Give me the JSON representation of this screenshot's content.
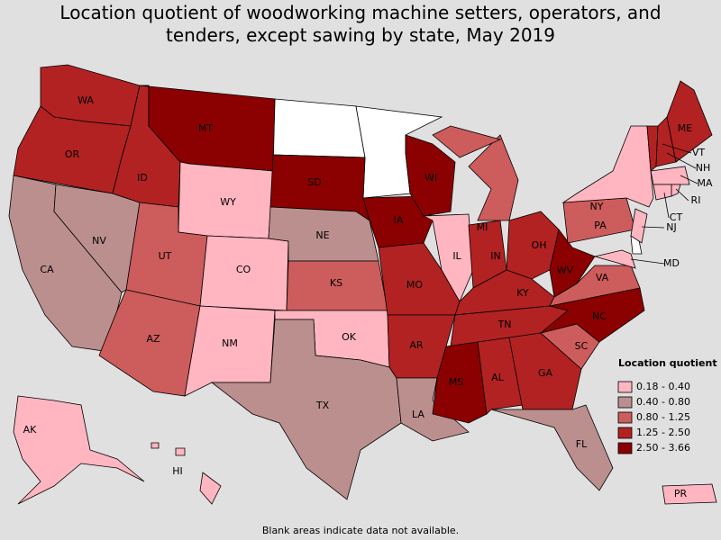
{
  "title": "Location quotient of woodworking machine setters, operators, and tenders, except sawing by state, May 2019",
  "note": "Blank areas indicate data not available.",
  "legend": {
    "title": "Location quotient",
    "bins": [
      {
        "label": "0.18 - 0.40",
        "color": "#ffb6c1"
      },
      {
        "label": "0.40 - 0.80",
        "color": "#bc8f8f"
      },
      {
        "label": "0.80 - 1.25",
        "color": "#cd5c5c"
      },
      {
        "label": "1.25 - 2.50",
        "color": "#b22222"
      },
      {
        "label": "2.50 - 3.66",
        "color": "#8b0000"
      }
    ]
  },
  "states": [
    {
      "label": "WA",
      "color": "#b22222"
    },
    {
      "label": "OR",
      "color": "#b22222"
    },
    {
      "label": "CA",
      "color": "#bc8f8f"
    },
    {
      "label": "NV",
      "color": "#bc8f8f"
    },
    {
      "label": "ID",
      "color": "#b22222"
    },
    {
      "label": "MT",
      "color": "#8b0000"
    },
    {
      "label": "WY",
      "color": "#ffb6c1"
    },
    {
      "label": "UT",
      "color": "#cd5c5c"
    },
    {
      "label": "CO",
      "color": "#ffb6c1"
    },
    {
      "label": "AZ",
      "color": "#cd5c5c"
    },
    {
      "label": "NM",
      "color": "#ffb6c1"
    },
    {
      "label": "SD",
      "color": "#8b0000"
    },
    {
      "label": "NE",
      "color": "#bc8f8f"
    },
    {
      "label": "KS",
      "color": "#cd5c5c"
    },
    {
      "label": "OK",
      "color": "#ffb6c1"
    },
    {
      "label": "TX",
      "color": "#bc8f8f"
    },
    {
      "label": "IA",
      "color": "#8b0000"
    },
    {
      "label": "MO",
      "color": "#b22222"
    },
    {
      "label": "AR",
      "color": "#b22222"
    },
    {
      "label": "LA",
      "color": "#bc8f8f"
    },
    {
      "label": "WI",
      "color": "#8b0000"
    },
    {
      "label": "IL",
      "color": "#ffb6c1"
    },
    {
      "label": "MI",
      "color": "#cd5c5c"
    },
    {
      "label": "IN",
      "color": "#b22222"
    },
    {
      "label": "OH",
      "color": "#b22222"
    },
    {
      "label": "KY",
      "color": "#b22222"
    },
    {
      "label": "TN",
      "color": "#b22222"
    },
    {
      "label": "MS",
      "color": "#8b0000"
    },
    {
      "label": "AL",
      "color": "#b22222"
    },
    {
      "label": "GA",
      "color": "#b22222"
    },
    {
      "label": "FL",
      "color": "#bc8f8f"
    },
    {
      "label": "SC",
      "color": "#cd5c5c"
    },
    {
      "label": "NC",
      "color": "#8b0000"
    },
    {
      "label": "VA",
      "color": "#cd5c5c"
    },
    {
      "label": "WV",
      "color": "#8b0000"
    },
    {
      "label": "PA",
      "color": "#cd5c5c"
    },
    {
      "label": "NY",
      "color": "#ffb6c1"
    },
    {
      "label": "VT",
      "color": "#b22222"
    },
    {
      "label": "NH",
      "color": "#b22222"
    },
    {
      "label": "ME",
      "color": "#b22222"
    },
    {
      "label": "MA",
      "color": "#ffb6c1"
    },
    {
      "label": "RI",
      "color": "#ffb6c1"
    },
    {
      "label": "CT",
      "color": "#ffb6c1"
    },
    {
      "label": "NJ",
      "color": "#ffb6c1"
    },
    {
      "label": "MD",
      "color": "#ffb6c1"
    },
    {
      "label": "AK",
      "color": "#ffb6c1"
    },
    {
      "label": "HI",
      "color": "#ffb6c1"
    },
    {
      "label": "PR",
      "color": "#ffb6c1"
    }
  ]
}
